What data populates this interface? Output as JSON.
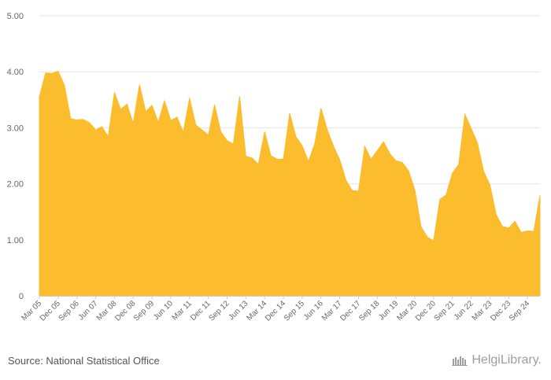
{
  "chart_data": {
    "type": "area",
    "color": "#FBBC2D",
    "ylim": [
      0,
      5
    ],
    "yticks": [
      "0",
      "1.00",
      "2.00",
      "3.00",
      "4.00",
      "5.00"
    ],
    "x_tick_labels": [
      "Mar 05",
      "Dec 05",
      "Sep 06",
      "Jun 07",
      "Mar 08",
      "Dec 08",
      "Sep 09",
      "Jun 10",
      "Mar 11",
      "Dec 11",
      "Sep 12",
      "Jun 13",
      "Mar 14",
      "Dec 14",
      "Sep 15",
      "Jun 16",
      "Mar 17",
      "Dec 17",
      "Sep 18",
      "Jun 19",
      "Mar 20",
      "Dec 20",
      "Sep 21",
      "Jun 22",
      "Mar 23",
      "Dec 23",
      "Sep 24"
    ],
    "values": [
      3.55,
      3.98,
      3.97,
      4.01,
      3.76,
      3.16,
      3.14,
      3.15,
      3.09,
      2.96,
      3.02,
      2.84,
      3.63,
      3.33,
      3.42,
      3.08,
      3.77,
      3.29,
      3.4,
      3.1,
      3.48,
      3.13,
      3.19,
      2.92,
      3.53,
      3.05,
      2.96,
      2.87,
      3.41,
      2.93,
      2.77,
      2.71,
      3.56,
      2.49,
      2.46,
      2.35,
      2.93,
      2.5,
      2.44,
      2.44,
      3.26,
      2.84,
      2.68,
      2.4,
      2.71,
      3.35,
      2.97,
      2.67,
      2.43,
      2.06,
      1.88,
      1.87,
      2.67,
      2.44,
      2.59,
      2.75,
      2.54,
      2.41,
      2.38,
      2.23,
      1.89,
      1.23,
      1.05,
      0.98,
      1.72,
      1.8,
      2.19,
      2.34,
      3.24,
      2.99,
      2.73,
      2.22,
      1.98,
      1.45,
      1.24,
      1.21,
      1.33,
      1.13,
      1.16,
      1.15,
      1.79
    ]
  },
  "footer": {
    "source": "Source: National Statistical Office",
    "logo_text": "HelgiLibrary."
  }
}
